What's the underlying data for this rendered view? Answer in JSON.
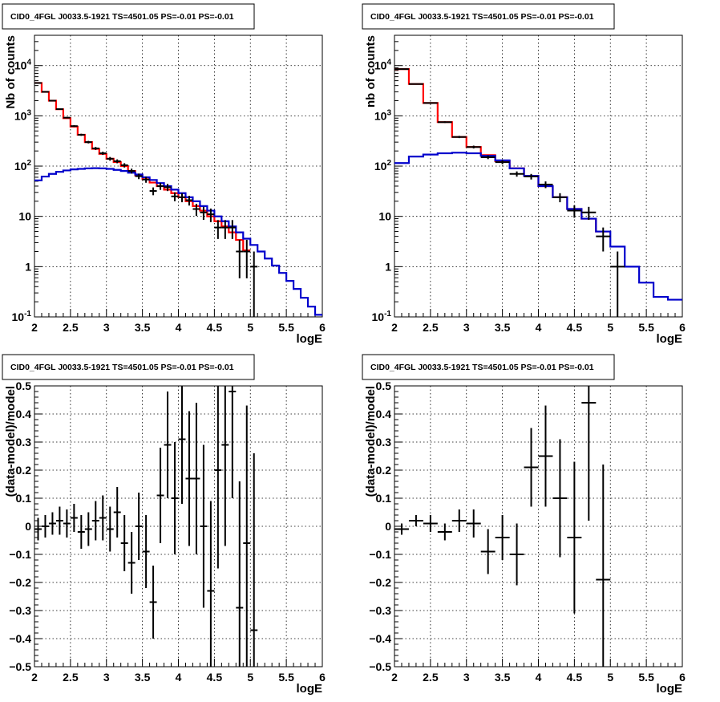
{
  "colors": {
    "data": "#000000",
    "total_model": "#ff0000",
    "source_model": "#0000cc",
    "grid": "#000000"
  },
  "chart_data": [
    {
      "type": "line",
      "title": "CID0_4FGL J0033.5-1921 TS=4501.05 PS=-0.01 PS=-0.01",
      "xlabel": "logE",
      "ylabel": "Nb of counts",
      "xlim": [
        2,
        6
      ],
      "ylim": [
        0.1,
        40000
      ],
      "yscale": "log",
      "grid": true,
      "x_ticks": [
        "2",
        "2.5",
        "3",
        "3.5",
        "4",
        "4.5",
        "5",
        "5.5",
        "6"
      ],
      "y_ticks": [
        {
          "v": 0.1,
          "label": "10",
          "sup": "-1"
        },
        {
          "v": 1,
          "label": "1",
          "sup": ""
        },
        {
          "v": 10,
          "label": "10",
          "sup": ""
        },
        {
          "v": 100,
          "label": "10",
          "sup": "2"
        },
        {
          "v": 1000,
          "label": "10",
          "sup": "3"
        },
        {
          "v": 10000,
          "label": "10",
          "sup": "4"
        }
      ],
      "series": [
        {
          "kind": "step",
          "role": "total_model",
          "edges": [
            2.0,
            2.1,
            2.2,
            2.3,
            2.4,
            2.5,
            2.6,
            2.7,
            2.8,
            2.9,
            3.0,
            3.1,
            3.2,
            3.3,
            3.4,
            3.5,
            3.6,
            3.7,
            3.8,
            3.9,
            4.0,
            4.1,
            4.2,
            4.3,
            4.4,
            4.5,
            4.6,
            4.7,
            4.8,
            4.9,
            5.0
          ],
          "values": [
            4500,
            3000,
            2000,
            1350,
            900,
            610,
            420,
            300,
            220,
            175,
            140,
            120,
            100,
            80,
            65,
            55,
            47,
            40,
            34,
            29,
            24,
            20,
            16,
            13,
            10,
            8,
            6.3,
            4.8,
            3.4,
            2.1
          ]
        },
        {
          "kind": "step",
          "role": "source_model",
          "edges": [
            2.0,
            2.1,
            2.2,
            2.3,
            2.4,
            2.5,
            2.6,
            2.7,
            2.8,
            2.9,
            3.0,
            3.1,
            3.2,
            3.3,
            3.4,
            3.5,
            3.6,
            3.7,
            3.8,
            3.9,
            4.0,
            4.1,
            4.2,
            4.3,
            4.4,
            4.5,
            4.6,
            4.7,
            4.8,
            4.9,
            5.0,
            5.1,
            5.2,
            5.3,
            5.4,
            5.5,
            5.6,
            5.7,
            5.8,
            5.9,
            6.0
          ],
          "values": [
            52,
            62,
            70,
            77,
            82,
            86,
            88,
            90,
            91,
            90,
            88,
            84,
            80,
            74,
            68,
            60,
            53,
            46,
            40,
            34,
            29,
            24,
            20,
            16,
            13,
            10,
            8,
            6.3,
            4.8,
            3.6,
            2.7,
            2.0,
            1.45,
            1.05,
            0.75,
            0.52,
            0.36,
            0.24,
            0.16,
            0.11
          ]
        },
        {
          "kind": "errorbar",
          "role": "data",
          "x": [
            2.05,
            2.15,
            2.25,
            2.35,
            2.45,
            2.55,
            2.65,
            2.75,
            2.85,
            2.95,
            3.05,
            3.15,
            3.25,
            3.35,
            3.45,
            3.55,
            3.65,
            3.75,
            3.85,
            3.95,
            4.05,
            4.15,
            4.25,
            4.35,
            4.45,
            4.55,
            4.65,
            4.75,
            4.85,
            4.95,
            5.05
          ],
          "y": [
            4500,
            3000,
            2000,
            1360,
            920,
            625,
            420,
            300,
            225,
            180,
            140,
            125,
            104,
            80,
            63,
            54,
            32,
            40,
            38,
            25,
            24,
            21,
            14,
            12,
            11,
            6,
            6,
            6,
            2,
            2,
            1
          ]
        }
      ]
    },
    {
      "type": "line",
      "title": "CID0_4FGL J0033.5-1921 TS=4501.05 PS=-0.01 PS=-0.01",
      "xlabel": "logE",
      "ylabel": "nb of counts",
      "xlim": [
        2,
        6
      ],
      "ylim": [
        0.1,
        40000
      ],
      "yscale": "log",
      "grid": true,
      "x_ticks": [
        "2",
        "2.5",
        "3",
        "3.5",
        "4",
        "4.5",
        "5",
        "5.5",
        "6"
      ],
      "y_ticks": [
        {
          "v": 0.1,
          "label": "10",
          "sup": "-1"
        },
        {
          "v": 1,
          "label": "1",
          "sup": ""
        },
        {
          "v": 10,
          "label": "10",
          "sup": ""
        },
        {
          "v": 100,
          "label": "10",
          "sup": "2"
        },
        {
          "v": 1000,
          "label": "10",
          "sup": "3"
        },
        {
          "v": 10000,
          "label": "10",
          "sup": "4"
        }
      ],
      "series": [
        {
          "kind": "step",
          "role": "total_model",
          "edges": [
            2.0,
            2.2,
            2.4,
            2.6,
            2.8,
            3.0,
            3.2,
            3.4,
            3.6,
            3.8,
            4.0,
            4.2,
            4.4,
            4.6,
            4.8,
            5.0
          ],
          "values": [
            8500,
            4300,
            1800,
            750,
            380,
            240,
            165,
            125,
            90,
            64,
            40,
            24,
            14,
            9,
            5
          ]
        },
        {
          "kind": "step",
          "role": "source_model",
          "edges": [
            2.0,
            2.2,
            2.4,
            2.6,
            2.8,
            3.0,
            3.2,
            3.4,
            3.6,
            3.8,
            4.0,
            4.2,
            4.4,
            4.6,
            4.8,
            5.0,
            5.2,
            5.4,
            5.6,
            5.8,
            6.0
          ],
          "values": [
            115,
            155,
            170,
            180,
            185,
            180,
            160,
            130,
            90,
            64,
            40,
            24,
            14,
            9,
            5,
            2.5,
            1.0,
            0.48,
            0.25,
            0.22
          ]
        },
        {
          "kind": "errorbar",
          "role": "data",
          "x": [
            2.1,
            2.3,
            2.5,
            2.7,
            2.9,
            3.1,
            3.3,
            3.5,
            3.7,
            3.9,
            4.1,
            4.3,
            4.5,
            4.7,
            4.9,
            5.1
          ],
          "y": [
            8500,
            4300,
            1800,
            750,
            380,
            240,
            150,
            120,
            70,
            62,
            43,
            24,
            13,
            12,
            4,
            1
          ]
        }
      ]
    },
    {
      "type": "scatter",
      "title": "CID0_4FGL J0033.5-1921 TS=4501.05 PS=-0.01 PS=-0.01",
      "xlabel": "logE",
      "ylabel": "(data-model)/model",
      "xlim": [
        2,
        6
      ],
      "ylim": [
        -0.5,
        0.5
      ],
      "yscale": "linear",
      "grid": true,
      "x_ticks": [
        "2",
        "2.5",
        "3",
        "3.5",
        "4",
        "4.5",
        "5",
        "5.5",
        "6"
      ],
      "y_ticks": [
        {
          "v": -0.5,
          "label": "−0.5",
          "sup": ""
        },
        {
          "v": -0.4,
          "label": "−0.4",
          "sup": ""
        },
        {
          "v": -0.3,
          "label": "−0.3",
          "sup": ""
        },
        {
          "v": -0.2,
          "label": "−0.2",
          "sup": ""
        },
        {
          "v": -0.1,
          "label": "−0.1",
          "sup": ""
        },
        {
          "v": 0,
          "label": "0",
          "sup": ""
        },
        {
          "v": 0.1,
          "label": "0.1",
          "sup": ""
        },
        {
          "v": 0.2,
          "label": "0.2",
          "sup": ""
        },
        {
          "v": 0.3,
          "label": "0.3",
          "sup": ""
        },
        {
          "v": 0.4,
          "label": "0.4",
          "sup": ""
        },
        {
          "v": 0.5,
          "label": "0.5",
          "sup": ""
        }
      ],
      "series": [
        {
          "kind": "errorbar",
          "role": "data",
          "xerr": 0.05,
          "x": [
            2.05,
            2.15,
            2.25,
            2.35,
            2.45,
            2.55,
            2.65,
            2.75,
            2.85,
            2.95,
            3.05,
            3.15,
            3.25,
            3.35,
            3.45,
            3.55,
            3.65,
            3.75,
            3.85,
            3.95,
            4.05,
            4.15,
            4.25,
            4.35,
            4.45,
            4.55,
            4.65,
            4.75,
            4.85,
            4.95,
            5.05
          ],
          "y": [
            -0.01,
            0.0,
            0.01,
            0.02,
            0.01,
            0.03,
            -0.02,
            -0.01,
            0.02,
            0.03,
            -0.01,
            0.05,
            -0.06,
            -0.13,
            0.0,
            -0.09,
            -0.27,
            0.11,
            0.29,
            0.1,
            0.31,
            0.17,
            0.17,
            -0.0,
            -0.23,
            0.2,
            0.29,
            0.48,
            -0.29,
            -0.06,
            -0.37
          ],
          "err": [
            0.04,
            0.04,
            0.04,
            0.05,
            0.05,
            0.05,
            0.06,
            0.06,
            0.07,
            0.08,
            0.08,
            0.09,
            0.1,
            0.11,
            0.12,
            0.13,
            0.13,
            0.17,
            0.19,
            0.2,
            0.23,
            0.24,
            0.27,
            0.29,
            0.32,
            0.35,
            0.36,
            0.38,
            0.45,
            0.49,
            0.63
          ]
        }
      ]
    },
    {
      "type": "scatter",
      "title": "CID0_4FGL J0033.5-1921 TS=4501.05 PS=-0.01 PS=-0.01",
      "xlabel": "logE",
      "ylabel": "(data-model)/model",
      "xlim": [
        2,
        6
      ],
      "ylim": [
        -0.5,
        0.5
      ],
      "yscale": "linear",
      "grid": true,
      "x_ticks": [
        "2",
        "2.5",
        "3",
        "3.5",
        "4",
        "4.5",
        "5",
        "5.5",
        "6"
      ],
      "y_ticks": [
        {
          "v": -0.5,
          "label": "−0.5",
          "sup": ""
        },
        {
          "v": -0.4,
          "label": "−0.4",
          "sup": ""
        },
        {
          "v": -0.3,
          "label": "−0.3",
          "sup": ""
        },
        {
          "v": -0.2,
          "label": "−0.2",
          "sup": ""
        },
        {
          "v": -0.1,
          "label": "−0.1",
          "sup": ""
        },
        {
          "v": 0,
          "label": "0",
          "sup": ""
        },
        {
          "v": 0.1,
          "label": "0.1",
          "sup": ""
        },
        {
          "v": 0.2,
          "label": "0.2",
          "sup": ""
        },
        {
          "v": 0.3,
          "label": "0.3",
          "sup": ""
        },
        {
          "v": 0.4,
          "label": "0.4",
          "sup": ""
        },
        {
          "v": 0.5,
          "label": "0.5",
          "sup": ""
        }
      ],
      "series": [
        {
          "kind": "errorbar",
          "role": "data",
          "xerr": 0.1,
          "x": [
            2.1,
            2.3,
            2.5,
            2.7,
            2.9,
            3.1,
            3.3,
            3.5,
            3.7,
            3.9,
            4.1,
            4.3,
            4.5,
            4.7,
            4.9
          ],
          "y": [
            -0.01,
            0.02,
            0.01,
            -0.02,
            0.02,
            0.01,
            -0.09,
            -0.04,
            -0.1,
            0.21,
            0.25,
            0.1,
            -0.04,
            0.44,
            -0.19
          ],
          "err": [
            0.02,
            0.02,
            0.03,
            0.03,
            0.04,
            0.05,
            0.08,
            0.08,
            0.11,
            0.14,
            0.18,
            0.21,
            0.27,
            0.42,
            0.41
          ]
        }
      ]
    }
  ]
}
